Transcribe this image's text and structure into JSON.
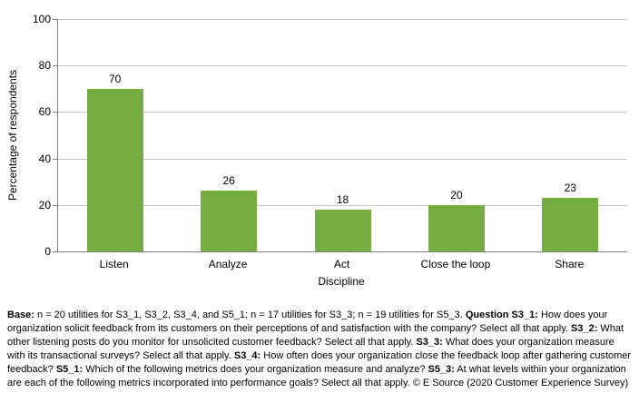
{
  "chart_data": {
    "type": "bar",
    "title": "",
    "categories": [
      "Listen",
      "Analyze",
      "Act",
      "Close the loop",
      "Share"
    ],
    "values": [
      70,
      26,
      18,
      20,
      23
    ],
    "xlabel": "Discipline",
    "ylabel": "Percentage of respondents",
    "ylim": [
      0,
      100
    ],
    "yticks": [
      0,
      20,
      40,
      60,
      80,
      100
    ],
    "grid": true,
    "legend": "none",
    "value_labels_shown": true
  },
  "colors": {
    "bar": "#76AD43",
    "axis_line": "#808080",
    "gridline": "#C6C6C6",
    "text": "#000000",
    "background": "#FFFFFF"
  },
  "footnote": {
    "segments": [
      {
        "text": "Base:",
        "bold": true
      },
      {
        "text": " n = 20 utilities for S3_1, S3_2, S3_4, and S5_1; n = 17 utilities for S3_3; n = 19 utilities for S5_3. ",
        "bold": false
      },
      {
        "text": "Question S3_1:",
        "bold": true
      },
      {
        "text": " How does your organization solicit feedback from its customers on their perceptions of and satisfaction with the company? Select all that apply. ",
        "bold": false
      },
      {
        "text": "S3_2:",
        "bold": true
      },
      {
        "text": " What other listening posts do you monitor for unsolicited customer feedback? Select all that apply. ",
        "bold": false
      },
      {
        "text": "S3_3:",
        "bold": true
      },
      {
        "text": " What does your organization measure with its transactional surveys? Select all that apply. ",
        "bold": false
      },
      {
        "text": "S3_4:",
        "bold": true
      },
      {
        "text": " How often does your organization close the feedback loop after gathering customer feedback? ",
        "bold": false
      },
      {
        "text": "S5_1:",
        "bold": true
      },
      {
        "text": " Which of the following metrics does your organization measure and analyze? ",
        "bold": false
      },
      {
        "text": "S5_3:",
        "bold": true
      },
      {
        "text": " At what levels within your organization are each of the following metrics incorporated into performance goals? Select all that apply. © E Source (2020 Customer Experience Survey)",
        "bold": false
      }
    ]
  }
}
